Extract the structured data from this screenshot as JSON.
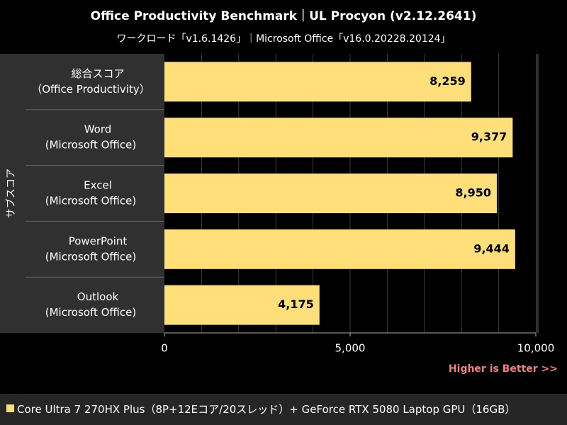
{
  "chart_data": {
    "type": "bar",
    "orientation": "horizontal",
    "title": "Office Productivity Benchmark｜UL Procyon (v2.12.2641)",
    "subtitle": "ワークロード「v1.6.1426」｜Microsoft Office「v16.0.20228.20124」",
    "ylabel": "サブスコア",
    "categories": [
      [
        "総合スコア",
        "（Office Productivity）"
      ],
      [
        "Word",
        "(Microsoft Office)"
      ],
      [
        "Excel",
        "(Microsoft Office)"
      ],
      [
        "PowerPoint",
        "(Microsoft Office)"
      ],
      [
        "Outlook",
        "(Microsoft Office)"
      ]
    ],
    "values": [
      8259,
      9377,
      8950,
      9444,
      4175
    ],
    "value_labels": [
      "8,259",
      "9,377",
      "8,950",
      "9,444",
      "4,175"
    ],
    "xlim": [
      0,
      10000
    ],
    "xticks": [
      0,
      5000,
      10000
    ],
    "xtick_labels": [
      "0",
      "5,000",
      "10,000"
    ],
    "grid": true,
    "bar_color": "#ffdf7a",
    "note": "Higher is Better >>",
    "note_color": "#f08080",
    "legend": "Core Ultra 7 270HX Plus（8P+12Eコア/20スレッド）+ GeForce RTX 5080 Laptop GPU（16GB）",
    "legend_position": "bottom"
  }
}
